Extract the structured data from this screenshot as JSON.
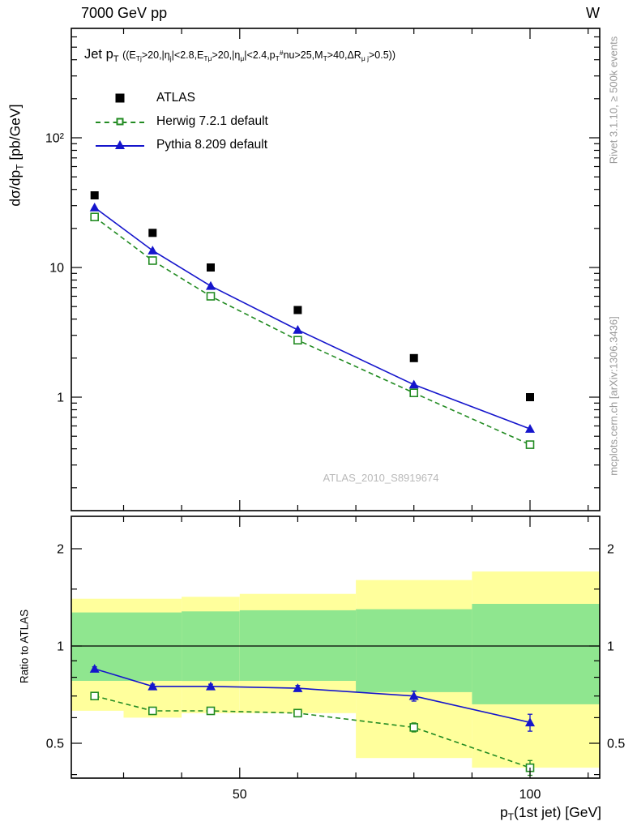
{
  "header": {
    "left": "7000 GeV pp",
    "right": "W"
  },
  "side_notes": {
    "top": "Rivet 3.1.10, ≥ 500k events",
    "bottom": "mcplots.cern.ch [arXiv:1306.3436]"
  },
  "watermark": "ATLAS_2010_S8919674",
  "chart_data": {
    "type": "line",
    "title_main": "Jet p_{T}",
    "title_cond": "((E_{Tj}>20,|η_{j}|<2.8,E_{Tμ}>20,|η_{μ}|<2.4,p_{T}^{#}nu>25,M_{T}>40,ΔR_{μ j}>0.5))",
    "xlabel": "p_{T}(1st jet) [GeV]",
    "ylabel_main": "dσ/dp_{T} [pb/GeV]",
    "ylabel_ratio": "Ratio to ATLAS",
    "x_range": [
      21,
      112
    ],
    "y_main_range": [
      0.133,
      697
    ],
    "y_ratio_range": [
      0.39,
      2.52
    ],
    "x_ticks_major": [
      50,
      100
    ],
    "x_ticks_minor": [
      30,
      40,
      60,
      70,
      80,
      90,
      110
    ],
    "y_main_ticks": [
      1,
      10,
      100
    ],
    "y_main_tick_labels": [
      "1",
      "10",
      "10²"
    ],
    "y_ratio_ticks": [
      0.5,
      1,
      2
    ],
    "y_ratio_ticks_minor": [
      0.4,
      0.6,
      0.7,
      0.8,
      0.9,
      1.5,
      2.5
    ],
    "bin_edges": [
      21,
      30,
      40,
      50,
      70,
      90,
      112
    ],
    "x": [
      25,
      35,
      45,
      60,
      80,
      100
    ],
    "series": [
      {
        "name": "ATLAS",
        "color": "#000000",
        "marker": "square-filled",
        "line": "none",
        "values": [
          36,
          18.5,
          10.0,
          4.7,
          2.0,
          1.0
        ]
      },
      {
        "name": "Herwig 7.2.1 default",
        "color": "#228b22",
        "marker": "square-open",
        "line": "dashed",
        "values": [
          24.5,
          11.3,
          6.0,
          2.75,
          1.08,
          0.43
        ],
        "ratio": [
          0.7,
          0.63,
          0.63,
          0.62,
          0.56,
          0.42
        ],
        "ratio_err": [
          0.012,
          0.012,
          0.012,
          0.012,
          0.018,
          0.022
        ]
      },
      {
        "name": "Pythia 8.209 default",
        "color": "#1515cc",
        "marker": "triangle-filled",
        "line": "solid",
        "values": [
          29,
          13.5,
          7.2,
          3.3,
          1.25,
          0.57
        ],
        "ratio": [
          0.85,
          0.75,
          0.75,
          0.74,
          0.7,
          0.58
        ],
        "ratio_err": [
          0.012,
          0.012,
          0.012,
          0.015,
          0.025,
          0.035
        ]
      }
    ],
    "bands": {
      "yellow": {
        "color": "#ffff9c",
        "lo": [
          0.63,
          0.6,
          0.62,
          0.62,
          0.45,
          0.42
        ],
        "hi": [
          1.4,
          1.4,
          1.42,
          1.45,
          1.6,
          1.7
        ]
      },
      "green": {
        "color": "#8fe68f",
        "lo": [
          0.78,
          0.78,
          0.78,
          0.78,
          0.72,
          0.66
        ],
        "hi": [
          1.27,
          1.27,
          1.28,
          1.29,
          1.3,
          1.35
        ]
      }
    }
  }
}
